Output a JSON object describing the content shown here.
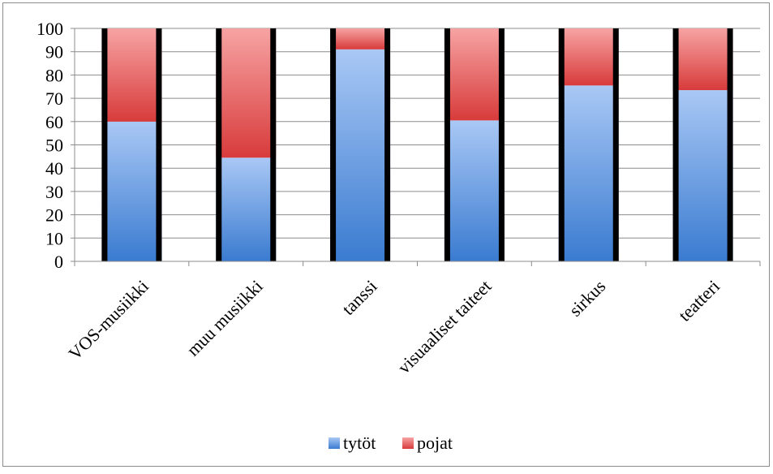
{
  "chart_data": {
    "type": "bar",
    "stacked": true,
    "percent": true,
    "categories": [
      "VOS-musiikki",
      "muu musiikki",
      "tanssi",
      "visuaaliset taiteet",
      "sirkus",
      "teatteri"
    ],
    "series": [
      {
        "name": "tytöt",
        "values": [
          60,
          44.5,
          91,
          60.5,
          75.5,
          73.5
        ],
        "color": "#5b8fd8"
      },
      {
        "name": "pojat",
        "values": [
          40,
          55.5,
          9,
          39.5,
          24.5,
          26.5
        ],
        "color": "#e87070"
      }
    ],
    "ylim": [
      0,
      100
    ],
    "yticks": [
      0,
      10,
      20,
      30,
      40,
      50,
      60,
      70,
      80,
      90,
      100
    ],
    "grid": true,
    "legend": "bottom"
  }
}
